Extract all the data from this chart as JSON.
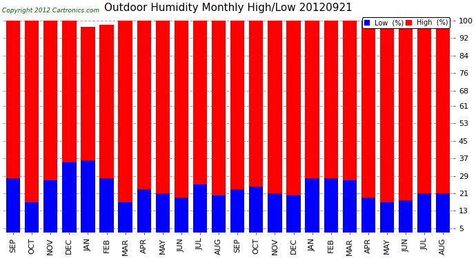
{
  "title": "Outdoor Humidity Monthly High/Low 20120921",
  "copyright": "Copyright 2012 Cartronics.com",
  "legend_low": "Low  (%)",
  "legend_high": "High  (%)",
  "categories": [
    "SEP",
    "OCT",
    "NOV",
    "DEC",
    "JAN",
    "FEB",
    "MAR",
    "APR",
    "MAY",
    "JUN",
    "JUL",
    "AUG",
    "SEP",
    "OCT",
    "NOV",
    "DEC",
    "JAN",
    "FEB",
    "MAR",
    "APR",
    "MAY",
    "JUN",
    "JUL",
    "AUG"
  ],
  "high_values": [
    100,
    100,
    100,
    100,
    97,
    98,
    100,
    100,
    100,
    100,
    100,
    100,
    100,
    100,
    100,
    100,
    100,
    100,
    100,
    100,
    100,
    100,
    100,
    100
  ],
  "low_values": [
    28,
    17,
    27,
    35,
    36,
    28,
    17,
    23,
    21,
    19,
    25,
    20,
    23,
    24,
    21,
    20,
    28,
    28,
    27,
    19,
    17,
    18,
    21,
    21
  ],
  "high_color": "#ff0000",
  "low_color": "#0000ff",
  "bg_color": "#ffffff",
  "yticks": [
    5,
    13,
    21,
    29,
    37,
    45,
    53,
    61,
    68,
    76,
    84,
    92,
    100
  ],
  "ylim": [
    3,
    103
  ],
  "grid_color": "#aaaaaa",
  "title_fontsize": 11,
  "tick_fontsize": 8,
  "bar_width": 0.75,
  "title_color": "#000000",
  "copyright_color": "#006400"
}
